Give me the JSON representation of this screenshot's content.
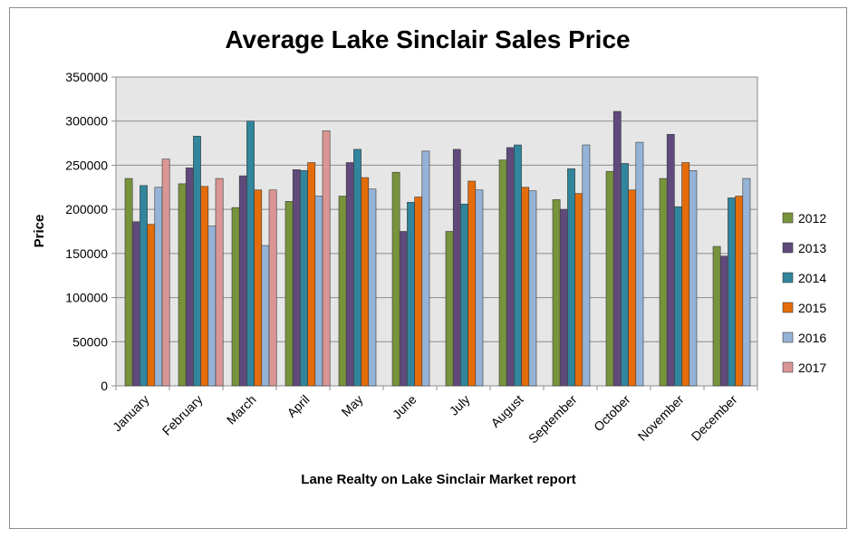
{
  "chart_data": {
    "type": "bar",
    "title": "Average Lake Sinclair Sales Price",
    "xlabel": "Lane Realty on Lake Sinclair Market report",
    "ylabel": "Price",
    "ylim": [
      0,
      350000
    ],
    "yticks": [
      0,
      50000,
      100000,
      150000,
      200000,
      250000,
      300000,
      350000
    ],
    "grid": true,
    "legend_position": "right",
    "categories": [
      "January",
      "February",
      "March",
      "April",
      "May",
      "June",
      "July",
      "August",
      "September",
      "October",
      "November",
      "December"
    ],
    "series": [
      {
        "name": "2012",
        "color": "#77933c",
        "values": [
          235000,
          229000,
          202000,
          209000,
          215000,
          242000,
          175000,
          256000,
          211000,
          243000,
          235000,
          158000
        ]
      },
      {
        "name": "2013",
        "color": "#604a7b",
        "values": [
          186000,
          247000,
          238000,
          245000,
          253000,
          175000,
          268000,
          270000,
          200000,
          311000,
          285000,
          147000
        ]
      },
      {
        "name": "2014",
        "color": "#31859c",
        "values": [
          227000,
          283000,
          300000,
          244000,
          268000,
          208000,
          206000,
          273000,
          246000,
          252000,
          203000,
          213000
        ]
      },
      {
        "name": "2015",
        "color": "#e46c0a",
        "values": [
          183000,
          226000,
          222000,
          253000,
          236000,
          214000,
          232000,
          225000,
          218000,
          222000,
          253000,
          215000
        ]
      },
      {
        "name": "2016",
        "color": "#95b3d7",
        "values": [
          225000,
          181000,
          159000,
          215000,
          223000,
          266000,
          222000,
          221000,
          273000,
          276000,
          244000,
          235000
        ]
      },
      {
        "name": "2017",
        "color": "#d99694",
        "values": [
          257000,
          235000,
          222000,
          289000,
          null,
          null,
          null,
          null,
          null,
          null,
          null,
          null
        ]
      }
    ]
  }
}
